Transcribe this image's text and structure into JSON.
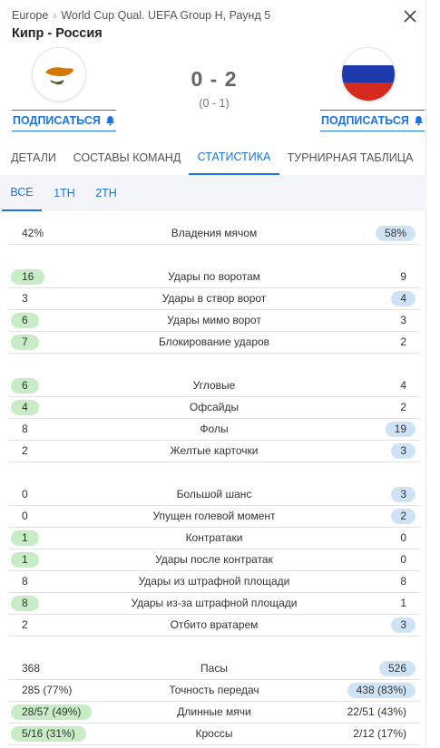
{
  "header": {
    "breadcrumb_region": "Europe",
    "breadcrumb_competition": "World Cup Qual. UEFA Group H, Раунд 5",
    "title": "Кипр - Россия",
    "score": "0 - 2",
    "halftime": "(0 - 1)",
    "subscribe_label": "ПОДПИСАТЬСЯ"
  },
  "tabs": [
    "ДЕТАЛИ",
    "СОСТАВЫ КОМАНД",
    "СТАТИСТИКА",
    "ТУРНИРНАЯ ТАБЛИЦА"
  ],
  "subtabs": [
    "ВСЕ",
    "1TH",
    "2TH"
  ],
  "colors": {
    "accent": "#1a73e8",
    "home_highlight": "#c8ecc6",
    "away_highlight": "#cfe3f7"
  },
  "stats": [
    {
      "name": "Владения мячом",
      "home": "42%",
      "away": "58%",
      "leader": "away"
    },
    {
      "name": "Удары по воротам",
      "home": "16",
      "away": "9",
      "leader": "home"
    },
    {
      "name": "Удары в створ ворот",
      "home": "3",
      "away": "4",
      "leader": "away"
    },
    {
      "name": "Удары мимо ворот",
      "home": "6",
      "away": "3",
      "leader": "home"
    },
    {
      "name": "Блокирование ударов",
      "home": "7",
      "away": "2",
      "leader": "home"
    },
    {
      "name": "Угловые",
      "home": "6",
      "away": "4",
      "leader": "home"
    },
    {
      "name": "Офсайды",
      "home": "4",
      "away": "2",
      "leader": "home"
    },
    {
      "name": "Фолы",
      "home": "8",
      "away": "19",
      "leader": "away"
    },
    {
      "name": "Желтые карточки",
      "home": "2",
      "away": "3",
      "leader": "away"
    },
    {
      "name": "Большой шанс",
      "home": "0",
      "away": "3",
      "leader": "away"
    },
    {
      "name": "Упущен голевой момент",
      "home": "0",
      "away": "2",
      "leader": "away"
    },
    {
      "name": "Контратаки",
      "home": "1",
      "away": "0",
      "leader": "home"
    },
    {
      "name": "Удары после контратак",
      "home": "1",
      "away": "0",
      "leader": "home"
    },
    {
      "name": "Удары из штрафной площади",
      "home": "8",
      "away": "8",
      "leader": "none"
    },
    {
      "name": "Удары из-за штрафной площади",
      "home": "8",
      "away": "1",
      "leader": "home"
    },
    {
      "name": "Отбито вратарем",
      "home": "2",
      "away": "3",
      "leader": "away"
    },
    {
      "name": "Пасы",
      "home": "368",
      "away": "526",
      "leader": "away"
    },
    {
      "name": "Точность передач",
      "home": "285 (77%)",
      "away": "438 (83%)",
      "leader": "away"
    },
    {
      "name": "Длинные мячи",
      "home": "28/57 (49%)",
      "away": "22/51 (43%)",
      "leader": "home"
    },
    {
      "name": "Кроссы",
      "home": "5/16 (31%)",
      "away": "2/12 (17%)",
      "leader": "home"
    }
  ]
}
